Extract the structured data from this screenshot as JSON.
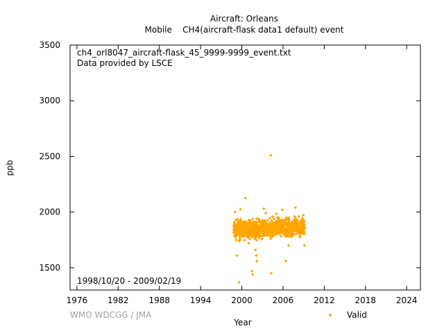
{
  "chart_data": {
    "type": "scatter",
    "title": "Aircraft: Orleans",
    "subtitle": "Mobile    CH4(aircraft-flask data1 default) event",
    "file_label": "ch4_orl8047_aircraft-flask_45_9999-9999_event.txt",
    "provider_label": "Data provided by LSCE",
    "date_range_label": "1998/10/20 - 2009/02/19",
    "watermark": "WMO WDCGG / JMA",
    "xlabel": "Year",
    "ylabel": "ppb",
    "xlim": [
      1975,
      2026
    ],
    "ylim": [
      1300,
      3500
    ],
    "x_ticks": [
      1976,
      1982,
      1988,
      1994,
      2000,
      2006,
      2012,
      2018,
      2024
    ],
    "y_ticks": [
      1500,
      2000,
      2500,
      3000,
      3500
    ],
    "grid": false,
    "legend": "bottom-right",
    "series": [
      {
        "name": "Valid",
        "color": "#ffa500",
        "marker": "diamond",
        "dense_band": {
          "x_start": 1998.8,
          "x_end": 2009.13,
          "y_low": 1780,
          "y_high": 1900
        },
        "outliers": [
          {
            "x": 1999.0,
            "y": 2000
          },
          {
            "x": 1999.3,
            "y": 1610
          },
          {
            "x": 1999.6,
            "y": 1370
          },
          {
            "x": 1999.8,
            "y": 2025
          },
          {
            "x": 2000.5,
            "y": 2125
          },
          {
            "x": 2000.9,
            "y": 1770
          },
          {
            "x": 2001.5,
            "y": 1470
          },
          {
            "x": 2001.6,
            "y": 1440
          },
          {
            "x": 2002.0,
            "y": 1660
          },
          {
            "x": 2002.1,
            "y": 1610
          },
          {
            "x": 2002.2,
            "y": 1560
          },
          {
            "x": 2003.2,
            "y": 2030
          },
          {
            "x": 2004.2,
            "y": 2510
          },
          {
            "x": 2004.3,
            "y": 1450
          },
          {
            "x": 2004.5,
            "y": 1960
          },
          {
            "x": 2005.9,
            "y": 2020
          },
          {
            "x": 2006.4,
            "y": 1560
          },
          {
            "x": 2006.8,
            "y": 1700
          },
          {
            "x": 2007.8,
            "y": 2040
          },
          {
            "x": 2009.1,
            "y": 1700
          },
          {
            "x": 2008.3,
            "y": 1960
          },
          {
            "x": 2003.5,
            "y": 1990
          },
          {
            "x": 2001.0,
            "y": 1720
          },
          {
            "x": 2005.0,
            "y": 1985
          }
        ]
      }
    ]
  }
}
